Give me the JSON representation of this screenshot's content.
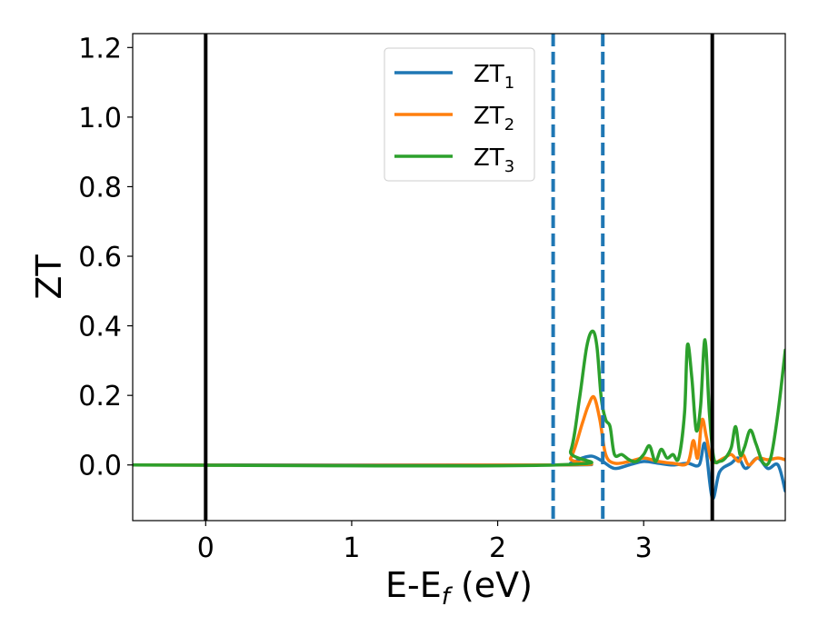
{
  "chart_data": {
    "type": "line",
    "xlabel": "E-E",
    "xlabel_sub": "f",
    "xlabel_unit": " (eV)",
    "ylabel": "ZT",
    "xlim": [
      -0.5,
      3.97
    ],
    "ylim": [
      -0.16,
      1.24
    ],
    "xticks": [
      0,
      1,
      2,
      3
    ],
    "xtick_labels": [
      "0",
      "1",
      "2",
      "3"
    ],
    "yticks": [
      0.0,
      0.2,
      0.4,
      0.6,
      0.8,
      1.0,
      1.2
    ],
    "ytick_labels": [
      "0.0",
      "0.2",
      "0.4",
      "0.6",
      "0.8",
      "1.0",
      "1.2"
    ],
    "grid": false,
    "legend_position": "top-center",
    "vlines": [
      {
        "x": 0.0,
        "style": "solid",
        "color": "#000000"
      },
      {
        "x": 2.38,
        "style": "dashed",
        "color": "#1f77b4"
      },
      {
        "x": 2.72,
        "style": "dashed",
        "color": "#1f77b4"
      },
      {
        "x": 3.47,
        "style": "solid",
        "color": "#000000"
      }
    ],
    "series": [
      {
        "name": "ZT",
        "name_sub": "1",
        "color": "#1f77b4",
        "x": [
          -0.5,
          2.4,
          2.5,
          2.58,
          2.65,
          2.72,
          2.8,
          2.9,
          3.0,
          3.1,
          3.2,
          3.3,
          3.38,
          3.42,
          3.47,
          3.52,
          3.6,
          3.65,
          3.7,
          3.78,
          3.85,
          3.92,
          3.97
        ],
        "y": [
          0.0,
          0.0,
          0.005,
          0.02,
          0.025,
          0.01,
          -0.01,
          0.0,
          0.01,
          0.005,
          0.0,
          0.005,
          0.0,
          0.06,
          -0.095,
          -0.02,
          0.005,
          0.02,
          -0.01,
          0.02,
          -0.01,
          0.0,
          -0.075
        ]
      },
      {
        "name": "ZT",
        "name_sub": "2",
        "color": "#ff7f0e",
        "x": [
          -0.5,
          2.4,
          2.5,
          2.58,
          2.62,
          2.66,
          2.7,
          2.74,
          2.8,
          2.9,
          3.0,
          3.1,
          3.2,
          3.3,
          3.34,
          3.37,
          3.4,
          3.43,
          3.47,
          3.55,
          3.6,
          3.65,
          3.68,
          3.72,
          3.78,
          3.85,
          3.92,
          3.97
        ],
        "y": [
          0.0,
          0.0,
          0.02,
          0.12,
          0.17,
          0.195,
          0.13,
          0.03,
          0.005,
          0.01,
          0.02,
          0.01,
          0.005,
          0.005,
          0.07,
          0.02,
          0.13,
          0.08,
          0.01,
          0.02,
          0.03,
          0.01,
          0.03,
          0.0,
          0.02,
          0.015,
          0.02,
          0.015
        ]
      },
      {
        "name": "ZT",
        "name_sub": "3",
        "color": "#2ca02c",
        "x": [
          -0.5,
          2.4,
          2.5,
          2.56,
          2.61,
          2.65,
          2.68,
          2.71,
          2.74,
          2.77,
          2.8,
          2.85,
          2.9,
          2.95,
          3.0,
          3.04,
          3.08,
          3.12,
          3.16,
          3.2,
          3.24,
          3.28,
          3.3,
          3.33,
          3.36,
          3.39,
          3.42,
          3.45,
          3.48,
          3.52,
          3.56,
          3.6,
          3.63,
          3.66,
          3.69,
          3.73,
          3.77,
          3.82,
          3.87,
          3.92,
          3.97
        ],
        "y": [
          0.0,
          0.0,
          0.04,
          0.19,
          0.34,
          0.385,
          0.34,
          0.19,
          0.13,
          0.11,
          0.03,
          0.03,
          0.015,
          0.01,
          0.03,
          0.055,
          0.01,
          0.045,
          0.02,
          0.03,
          0.02,
          0.15,
          0.345,
          0.25,
          0.1,
          0.17,
          0.36,
          0.15,
          0.02,
          0.01,
          0.02,
          0.05,
          0.11,
          0.03,
          0.05,
          0.1,
          0.06,
          0.005,
          0.02,
          0.15,
          0.33
        ]
      }
    ]
  }
}
